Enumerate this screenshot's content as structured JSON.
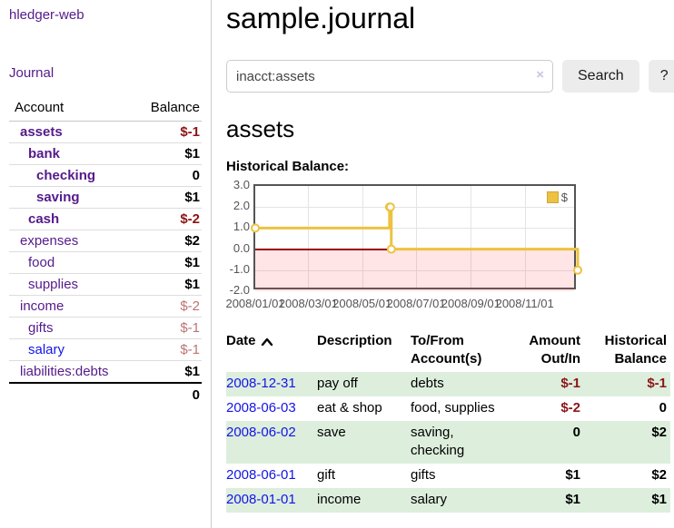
{
  "sidebar": {
    "brand": "hledger-web",
    "journal_link": "Journal",
    "accounts_table": {
      "account_header": "Account",
      "balance_header": "Balance",
      "rows": [
        {
          "label": "assets",
          "depth": 0,
          "bold": true,
          "balance": "$-1",
          "balance_style": "neg"
        },
        {
          "label": "bank",
          "depth": 1,
          "bold": true,
          "balance": "$1",
          "balance_style": "pos"
        },
        {
          "label": "checking",
          "depth": 2,
          "bold": true,
          "balance": "0",
          "balance_style": "pos"
        },
        {
          "label": "saving",
          "depth": 2,
          "bold": true,
          "balance": "$1",
          "balance_style": "pos"
        },
        {
          "label": "cash",
          "depth": 1,
          "bold": true,
          "balance": "$-2",
          "balance_style": "neg"
        },
        {
          "label": "expenses",
          "depth": 0,
          "bold": false,
          "balance": "$2",
          "balance_style": "pos"
        },
        {
          "label": "food",
          "depth": 1,
          "bold": false,
          "balance": "$1",
          "balance_style": "pos"
        },
        {
          "label": "supplies",
          "depth": 1,
          "bold": false,
          "balance": "$1",
          "balance_style": "pos"
        },
        {
          "label": "income",
          "depth": 0,
          "bold": false,
          "balance": "$-2",
          "balance_style": "neg-soft"
        },
        {
          "label": "gifts",
          "depth": 1,
          "bold": false,
          "balance": "$-1",
          "balance_style": "neg-soft"
        },
        {
          "label": "salary",
          "depth": 1,
          "bold": false,
          "color": "blue",
          "balance": "$-1",
          "balance_style": "neg-soft"
        },
        {
          "label": "liabilities:debts",
          "depth": 0,
          "bold": false,
          "balance": "$1",
          "balance_style": "pos"
        }
      ],
      "total": "0"
    }
  },
  "main": {
    "title": "sample.journal",
    "search": {
      "value": "inacct:assets",
      "clear_label": "×",
      "button": "Search",
      "help_button": "?"
    },
    "account_title": "assets",
    "chart_heading": "Historical Balance:"
  },
  "chart_data": {
    "type": "line",
    "subtype": "step",
    "title": "Historical Balance",
    "legend": [
      {
        "label": "$",
        "color": "#edc240"
      }
    ],
    "legend_position": "top-right",
    "x": [
      "2008-01-01",
      "2008-06-01",
      "2008-06-02",
      "2008-06-03",
      "2008-12-31"
    ],
    "series": [
      {
        "name": "$",
        "values": [
          1,
          2,
          2,
          0,
          -1
        ]
      }
    ],
    "xlim": [
      "2008-01-01",
      "2008-12-31"
    ],
    "ylim": [
      -2,
      3
    ],
    "x_ticks": [
      "2008/01/01",
      "2008/03/01",
      "2008/05/01",
      "2008/07/01",
      "2008/09/01",
      "2008/11/01"
    ],
    "y_ticks": [
      "3.0",
      "2.0",
      "1.0",
      "0.0",
      "-1.0",
      "-2.0"
    ],
    "grid": true,
    "line_color": "#edc240",
    "marker": "open-circle",
    "zero_line_color": "#990000",
    "negative_region": true
  },
  "register": {
    "headers": {
      "date": "Date",
      "description": "Description",
      "accounts": "To/From Account(s)",
      "amount": "Amount Out/In",
      "balance": "Historical Balance"
    },
    "sort": {
      "column": "date",
      "direction": "asc"
    },
    "rows": [
      {
        "date": "2008-12-31",
        "description": "pay off",
        "accounts": "debts",
        "amount": "$-1",
        "amount_neg": true,
        "balance": "$-1",
        "balance_neg": true,
        "stripe": true
      },
      {
        "date": "2008-06-03",
        "description": "eat & shop",
        "accounts": "food, supplies",
        "amount": "$-2",
        "amount_neg": true,
        "balance": "0",
        "balance_neg": false,
        "stripe": false
      },
      {
        "date": "2008-06-02",
        "description": "save",
        "accounts": "saving, checking",
        "amount": "0",
        "amount_neg": false,
        "balance": "$2",
        "balance_neg": false,
        "stripe": true
      },
      {
        "date": "2008-06-01",
        "description": "gift",
        "accounts": "gifts",
        "amount": "$1",
        "amount_neg": false,
        "balance": "$2",
        "balance_neg": false,
        "stripe": false
      },
      {
        "date": "2008-01-01",
        "description": "income",
        "accounts": "salary",
        "amount": "$1",
        "amount_neg": false,
        "balance": "$1",
        "balance_neg": false,
        "stripe": true
      }
    ]
  }
}
